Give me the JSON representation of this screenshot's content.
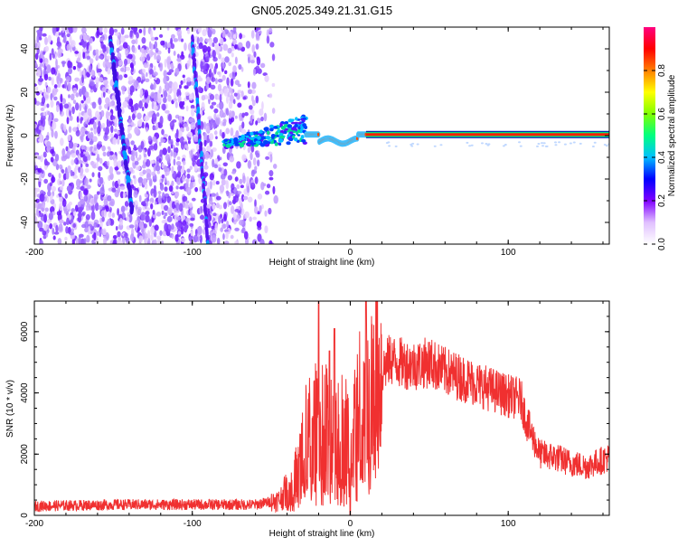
{
  "title": "GN05.2025.349.21.31.G15",
  "chart_data": [
    {
      "type": "heatmap",
      "name": "spectrogram",
      "title": "GN05.2025.349.21.31.G15",
      "xlabel": "Height of straight line (km)",
      "ylabel": "Frequency (Hz)",
      "xlim": [
        -200,
        164
      ],
      "ylim": [
        -50,
        50
      ],
      "x_ticks": [
        -200,
        -100,
        0,
        100
      ],
      "x_tick_labels": [
        "-200",
        "-100",
        "0",
        "100"
      ],
      "y_ticks": [
        -40,
        -20,
        0,
        20,
        40
      ],
      "y_tick_labels": [
        "-40",
        "-20",
        "0",
        "20",
        "40"
      ],
      "colorbar": {
        "label": "Normalized spectral amplitude",
        "range": [
          0,
          1
        ],
        "ticks": [
          0.0,
          0.2,
          0.4,
          0.6,
          0.8
        ],
        "tick_labels": [
          "0.0",
          "0.2",
          "0.4",
          "0.6",
          "0.8"
        ],
        "colors": [
          "#ffffff",
          "#e0c0ff",
          "#8000ff",
          "#0000ff",
          "#00c0ff",
          "#00ff80",
          "#80ff00",
          "#ffff00",
          "#ff8000",
          "#ff0000",
          "#ff0080"
        ]
      },
      "features": {
        "noise_region_km": [
          -200,
          -55
        ],
        "carrier_line_km": [
          -28,
          164
        ],
        "carrier_freq_hz": 0.5,
        "streak_1": {
          "from": [
            -152,
            45
          ],
          "to": [
            -138,
            -35
          ]
        },
        "streak_2": {
          "from": [
            -100,
            45
          ],
          "to": [
            -90,
            -50
          ]
        }
      }
    },
    {
      "type": "line",
      "name": "snr",
      "xlabel": "Height of straight line (km)",
      "ylabel": "SNR (10 * v/v)",
      "xlim": [
        -200,
        164
      ],
      "ylim": [
        0,
        7000
      ],
      "x_ticks": [
        -200,
        -100,
        0,
        100
      ],
      "x_tick_labels": [
        "-200",
        "-100",
        "0",
        "100"
      ],
      "y_ticks": [
        0,
        2000,
        4000,
        6000
      ],
      "y_tick_labels": [
        "0",
        "2000",
        "4000",
        "6000"
      ],
      "color": "#f03030",
      "envelope": {
        "x": [
          -200,
          -150,
          -100,
          -60,
          -45,
          -35,
          -28,
          -20,
          -10,
          -5,
          0,
          5,
          10,
          20,
          25,
          30,
          40,
          50,
          60,
          70,
          80,
          90,
          100,
          108,
          112,
          120,
          130,
          140,
          150,
          164
        ],
        "y": [
          300,
          350,
          350,
          350,
          500,
          1200,
          2500,
          3000,
          3200,
          2800,
          2600,
          3600,
          3800,
          4700,
          5100,
          5000,
          4900,
          5000,
          4700,
          4500,
          4300,
          4100,
          3900,
          3800,
          3000,
          2000,
          1900,
          1700,
          1600,
          1900
        ]
      },
      "spikes": [
        {
          "x": -20,
          "y": 7000
        },
        {
          "x": -10,
          "y": 6100
        },
        {
          "x": 10,
          "y": 7000
        },
        {
          "x": 0,
          "y": 0
        }
      ]
    }
  ]
}
